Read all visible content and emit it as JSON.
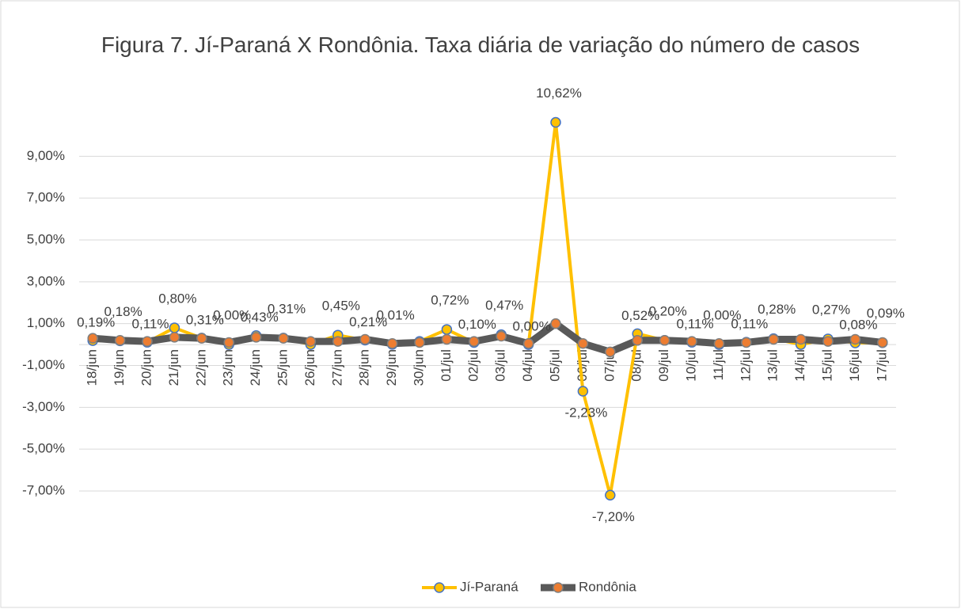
{
  "chart_data": {
    "type": "line",
    "title": "Figura 7. Jí-Paraná X Rondônia. Taxa diária de variação do número de casos",
    "categories": [
      "18/jun",
      "19/jun",
      "20/jun",
      "21/jun",
      "22/jun",
      "23/jun",
      "24/jun",
      "25/jun",
      "26/jun",
      "27/jun",
      "28/jun",
      "29/jun",
      "30/jun",
      "01/jul",
      "02/jul",
      "03/jul",
      "04/jul",
      "05/jul",
      "06/jul",
      "07/jul",
      "08/jul",
      "09/jul",
      "10/jul",
      "11/jul",
      "12/jul",
      "13/jul",
      "14/jul",
      "15/jul",
      "16/jul",
      "17/jul"
    ],
    "series": [
      {
        "name": "Jí-Paraná",
        "color": "#ffc000",
        "values": [
          0.19,
          0.18,
          0.11,
          0.8,
          0.31,
          0.0,
          0.43,
          0.31,
          0.0,
          0.45,
          0.21,
          0.01,
          0.15,
          0.72,
          0.1,
          0.47,
          0.0,
          10.62,
          -2.23,
          -7.2,
          0.52,
          0.2,
          0.11,
          0.0,
          0.11,
          0.28,
          0.0,
          0.27,
          0.08,
          0.09
        ],
        "value_labels": [
          "0,19%",
          "0,18%",
          "0,11%",
          "0,80%",
          "0,31%",
          "0,00%",
          "0,43%",
          "0,31%",
          null,
          "0,45%",
          "0,21%",
          "0,01%",
          null,
          "0,72%",
          "0,10%",
          "0,47%",
          "0,00%",
          "10,62%",
          "-2,23%",
          "-7,20%",
          "0,52%",
          "0,20%",
          "0,11%",
          "0,00%",
          "0,11%",
          "0,28%",
          null,
          "0,27%",
          "0,08%",
          "0,09%"
        ]
      },
      {
        "name": "Rondônia",
        "color": "#595959",
        "values": [
          0.3,
          0.2,
          0.15,
          0.35,
          0.3,
          0.1,
          0.35,
          0.3,
          0.15,
          0.15,
          0.25,
          0.05,
          0.1,
          0.25,
          0.15,
          0.4,
          0.05,
          1.0,
          0.05,
          -0.35,
          0.2,
          0.2,
          0.15,
          0.05,
          0.1,
          0.25,
          0.25,
          0.15,
          0.25,
          0.1
        ]
      }
    ],
    "ylim": [
      -7,
      11
    ],
    "yticks": [
      {
        "value": -7,
        "label": "-7,00%"
      },
      {
        "value": -5,
        "label": "-5,00%"
      },
      {
        "value": -3,
        "label": "-3,00%"
      },
      {
        "value": -1,
        "label": "-1,00%"
      },
      {
        "value": 1,
        "label": "1,00%"
      },
      {
        "value": 3,
        "label": "3,00%"
      },
      {
        "value": 5,
        "label": "5,00%"
      },
      {
        "value": 7,
        "label": "7,00%"
      },
      {
        "value": 9,
        "label": "9,00%"
      }
    ],
    "grid": true,
    "legend": "bottom"
  }
}
